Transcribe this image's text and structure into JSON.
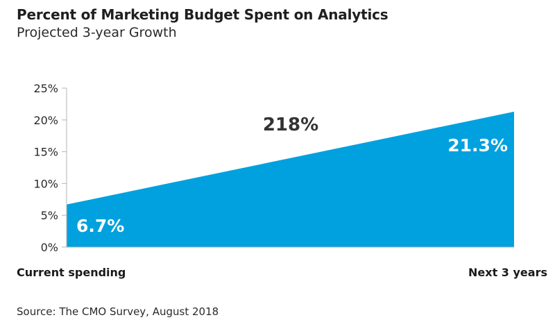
{
  "header": {
    "title": "Percent of Marketing Budget Spent on Analytics",
    "subtitle": "Projected 3-year Growth"
  },
  "footer": {
    "source_label": "Source:",
    "source_text": " The CMO Survey, August 2018"
  },
  "chart_data": {
    "type": "area",
    "title": "Percent of Marketing Budget Spent on Analytics",
    "subtitle": "Projected 3-year Growth",
    "categories": [
      "Current spending",
      "Next 3 years"
    ],
    "values": [
      6.7,
      21.3
    ],
    "data_labels": [
      "6.7%",
      "21.3%"
    ],
    "growth_label": "218%",
    "y_ticks": [
      "0%",
      "5%",
      "10%",
      "15%",
      "20%",
      "25%"
    ],
    "y_tick_values": [
      0,
      5,
      10,
      15,
      20,
      25
    ],
    "ylim": [
      0,
      25
    ],
    "grid": false,
    "color": "#00a1de"
  }
}
